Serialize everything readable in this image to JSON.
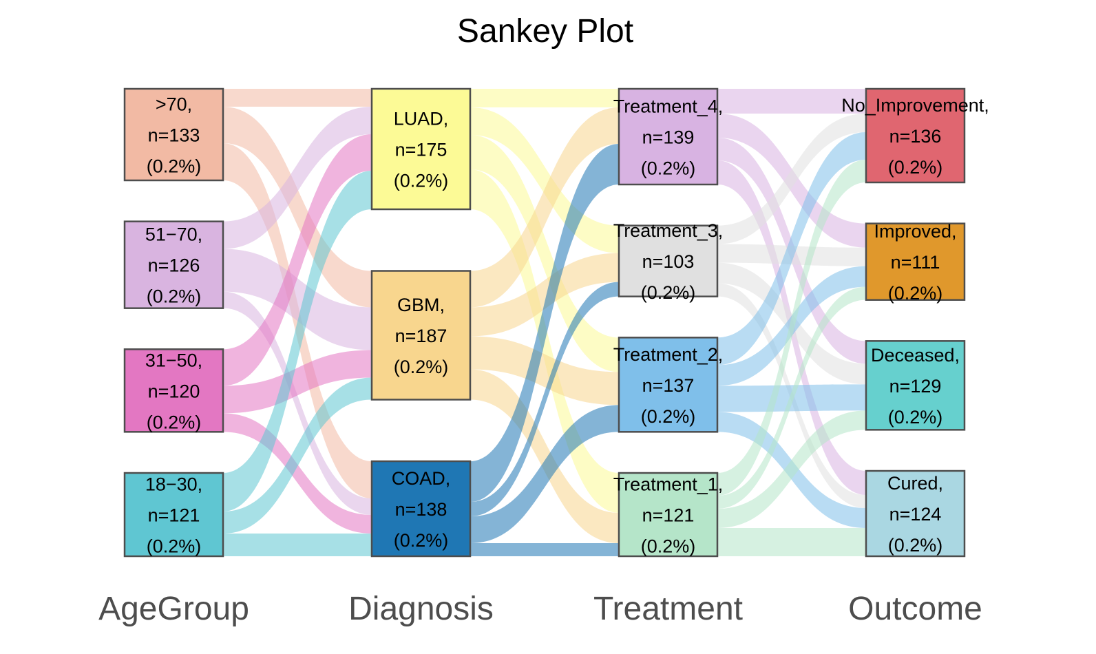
{
  "chart_data": {
    "type": "sankey",
    "title": "Sankey Plot",
    "axes": [
      "AgeGroup",
      "Diagnosis",
      "Treatment",
      "Outcome"
    ],
    "nodes": [
      {
        "axis": 0,
        "label": ">70,",
        "n": "n=133",
        "pct": "(0.2%)",
        "value": 133,
        "color": "#f2baa4"
      },
      {
        "axis": 0,
        "label": "51−70,",
        "n": "n=126",
        "pct": "(0.2%)",
        "value": 126,
        "color": "#d9b4e0"
      },
      {
        "axis": 0,
        "label": "31−50,",
        "n": "n=120",
        "pct": "(0.2%)",
        "value": 120,
        "color": "#e377c2"
      },
      {
        "axis": 0,
        "label": "18−30,",
        "n": "n=121",
        "pct": "(0.2%)",
        "value": 121,
        "color": "#5fc6d2"
      },
      {
        "axis": 1,
        "label": "LUAD,",
        "n": "n=175",
        "pct": "(0.2%)",
        "value": 175,
        "color": "#fcfa96"
      },
      {
        "axis": 1,
        "label": "GBM,",
        "n": "n=187",
        "pct": "(0.2%)",
        "value": 187,
        "color": "#f8d68e"
      },
      {
        "axis": 1,
        "label": "COAD,",
        "n": "n=138",
        "pct": "(0.2%)",
        "value": 138,
        "color": "#1f77b4"
      },
      {
        "axis": 2,
        "label": "Treatment_4,",
        "n": "n=139",
        "pct": "(0.2%)",
        "value": 139,
        "color": "#d8b3e2"
      },
      {
        "axis": 2,
        "label": "Treatment_3,",
        "n": "n=103",
        "pct": "(0.2%)",
        "value": 103,
        "color": "#e0e0e0"
      },
      {
        "axis": 2,
        "label": "Treatment_2,",
        "n": "n=137",
        "pct": "(0.2%)",
        "value": 137,
        "color": "#7fbfea"
      },
      {
        "axis": 2,
        "label": "Treatment_1,",
        "n": "n=121",
        "pct": "(0.2%)",
        "value": 121,
        "color": "#b5e5c9"
      },
      {
        "axis": 3,
        "label": "No_Improvement,",
        "n": "n=136",
        "pct": "(0.2%)",
        "value": 136,
        "color": "#e06670"
      },
      {
        "axis": 3,
        "label": "Improved,",
        "n": "n=111",
        "pct": "(0.2%)",
        "value": 111,
        "color": "#e0982c"
      },
      {
        "axis": 3,
        "label": "Deceased,",
        "n": "n=129",
        "pct": "(0.2%)",
        "value": 129,
        "color": "#66d0ce"
      },
      {
        "axis": 3,
        "label": "Cured,",
        "n": "n=124",
        "pct": "(0.2%)",
        "value": 124,
        "color": "#aad7e2"
      }
    ],
    "flows": [
      {
        "from": 0,
        "to": 4,
        "value": 26,
        "color": "#f2baa4"
      },
      {
        "from": 0,
        "to": 5,
        "value": 53,
        "color": "#f2baa4"
      },
      {
        "from": 0,
        "to": 6,
        "value": 54,
        "color": "#f2baa4"
      },
      {
        "from": 1,
        "to": 4,
        "value": 40,
        "color": "#d9b4e0"
      },
      {
        "from": 1,
        "to": 5,
        "value": 62,
        "color": "#d9b4e0"
      },
      {
        "from": 1,
        "to": 6,
        "value": 24,
        "color": "#d9b4e0"
      },
      {
        "from": 2,
        "to": 4,
        "value": 53,
        "color": "#e377c2"
      },
      {
        "from": 2,
        "to": 5,
        "value": 40,
        "color": "#e377c2"
      },
      {
        "from": 2,
        "to": 6,
        "value": 27,
        "color": "#e377c2"
      },
      {
        "from": 3,
        "to": 4,
        "value": 56,
        "color": "#5fc6d2"
      },
      {
        "from": 3,
        "to": 5,
        "value": 32,
        "color": "#5fc6d2"
      },
      {
        "from": 3,
        "to": 6,
        "value": 33,
        "color": "#5fc6d2"
      },
      {
        "from": 4,
        "to": 7,
        "value": 27,
        "color": "#fcfa96"
      },
      {
        "from": 4,
        "to": 8,
        "value": 40,
        "color": "#fcfa96"
      },
      {
        "from": 4,
        "to": 9,
        "value": 50,
        "color": "#fcfa96"
      },
      {
        "from": 4,
        "to": 10,
        "value": 58,
        "color": "#fcfa96"
      },
      {
        "from": 5,
        "to": 7,
        "value": 53,
        "color": "#f8d68e"
      },
      {
        "from": 5,
        "to": 8,
        "value": 42,
        "color": "#f8d68e"
      },
      {
        "from": 5,
        "to": 9,
        "value": 48,
        "color": "#f8d68e"
      },
      {
        "from": 5,
        "to": 10,
        "value": 44,
        "color": "#f8d68e"
      },
      {
        "from": 6,
        "to": 7,
        "value": 59,
        "color": "#1f77b4"
      },
      {
        "from": 6,
        "to": 8,
        "value": 21,
        "color": "#1f77b4"
      },
      {
        "from": 6,
        "to": 9,
        "value": 39,
        "color": "#1f77b4"
      },
      {
        "from": 6,
        "to": 10,
        "value": 19,
        "color": "#1f77b4"
      },
      {
        "from": 7,
        "to": 11,
        "value": 36,
        "color": "#d8b3e2"
      },
      {
        "from": 7,
        "to": 12,
        "value": 35,
        "color": "#d8b3e2"
      },
      {
        "from": 7,
        "to": 13,
        "value": 33,
        "color": "#d8b3e2"
      },
      {
        "from": 7,
        "to": 14,
        "value": 35,
        "color": "#d8b3e2"
      },
      {
        "from": 8,
        "to": 11,
        "value": 27,
        "color": "#e0e0e0"
      },
      {
        "from": 8,
        "to": 12,
        "value": 27,
        "color": "#e0e0e0"
      },
      {
        "from": 8,
        "to": 13,
        "value": 30,
        "color": "#e0e0e0"
      },
      {
        "from": 8,
        "to": 14,
        "value": 19,
        "color": "#e0e0e0"
      },
      {
        "from": 9,
        "to": 11,
        "value": 40,
        "color": "#7fbfea"
      },
      {
        "from": 9,
        "to": 12,
        "value": 30,
        "color": "#7fbfea"
      },
      {
        "from": 9,
        "to": 13,
        "value": 38,
        "color": "#7fbfea"
      },
      {
        "from": 9,
        "to": 14,
        "value": 29,
        "color": "#7fbfea"
      },
      {
        "from": 10,
        "to": 11,
        "value": 33,
        "color": "#b5e5c9"
      },
      {
        "from": 10,
        "to": 12,
        "value": 19,
        "color": "#b5e5c9"
      },
      {
        "from": 10,
        "to": 13,
        "value": 28,
        "color": "#b5e5c9"
      },
      {
        "from": 10,
        "to": 14,
        "value": 41,
        "color": "#b5e5c9"
      }
    ]
  }
}
